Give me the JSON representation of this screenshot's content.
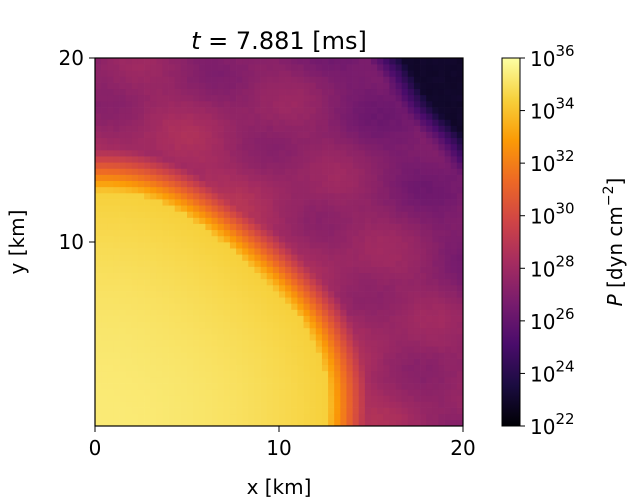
{
  "chart_data": {
    "type": "heatmap",
    "title": "t = 7.881 [ms]",
    "title_parts": {
      "var": "t",
      "rest": " = 7.881 [ms]"
    },
    "xlabel": "x [km]",
    "ylabel": "y [km]",
    "xlim": [
      0,
      20
    ],
    "ylim": [
      0,
      20
    ],
    "xticks": [
      "0",
      "10",
      "20"
    ],
    "yticks": [
      "10",
      "20"
    ],
    "colorbar": {
      "label": "P [dyn cm⁻²]",
      "label_parts": {
        "var": "P",
        "rest": " [dyn cm",
        "sup": "−2",
        "close": "]"
      },
      "scale": "log",
      "range_exponent": [
        22,
        36
      ],
      "colormap": "inferno",
      "ticks": [
        {
          "base": "10",
          "exp": "36"
        },
        {
          "base": "10",
          "exp": "34"
        },
        {
          "base": "10",
          "exp": "32"
        },
        {
          "base": "10",
          "exp": "30"
        },
        {
          "base": "10",
          "exp": "28"
        },
        {
          "base": "10",
          "exp": "26"
        },
        {
          "base": "10",
          "exp": "24"
        },
        {
          "base": "10",
          "exp": "22"
        }
      ]
    },
    "field": {
      "description_units": "log10 P at grid cells",
      "core_radius_km": 12.5,
      "center_log10P": 35.3,
      "edge_log10P": 34.4,
      "envelope_log10P_near": 28.5,
      "envelope_log10P_far": 26.6,
      "void_log10P": 23.0,
      "grid_cells": 60
    },
    "colors": {
      "inferno_stops": [
        "#000004",
        "#1b0c41",
        "#4a0c6b",
        "#781c6d",
        "#a52c60",
        "#cf4446",
        "#ed6925",
        "#fb9b06",
        "#f7d13d",
        "#fcffa4"
      ]
    }
  }
}
